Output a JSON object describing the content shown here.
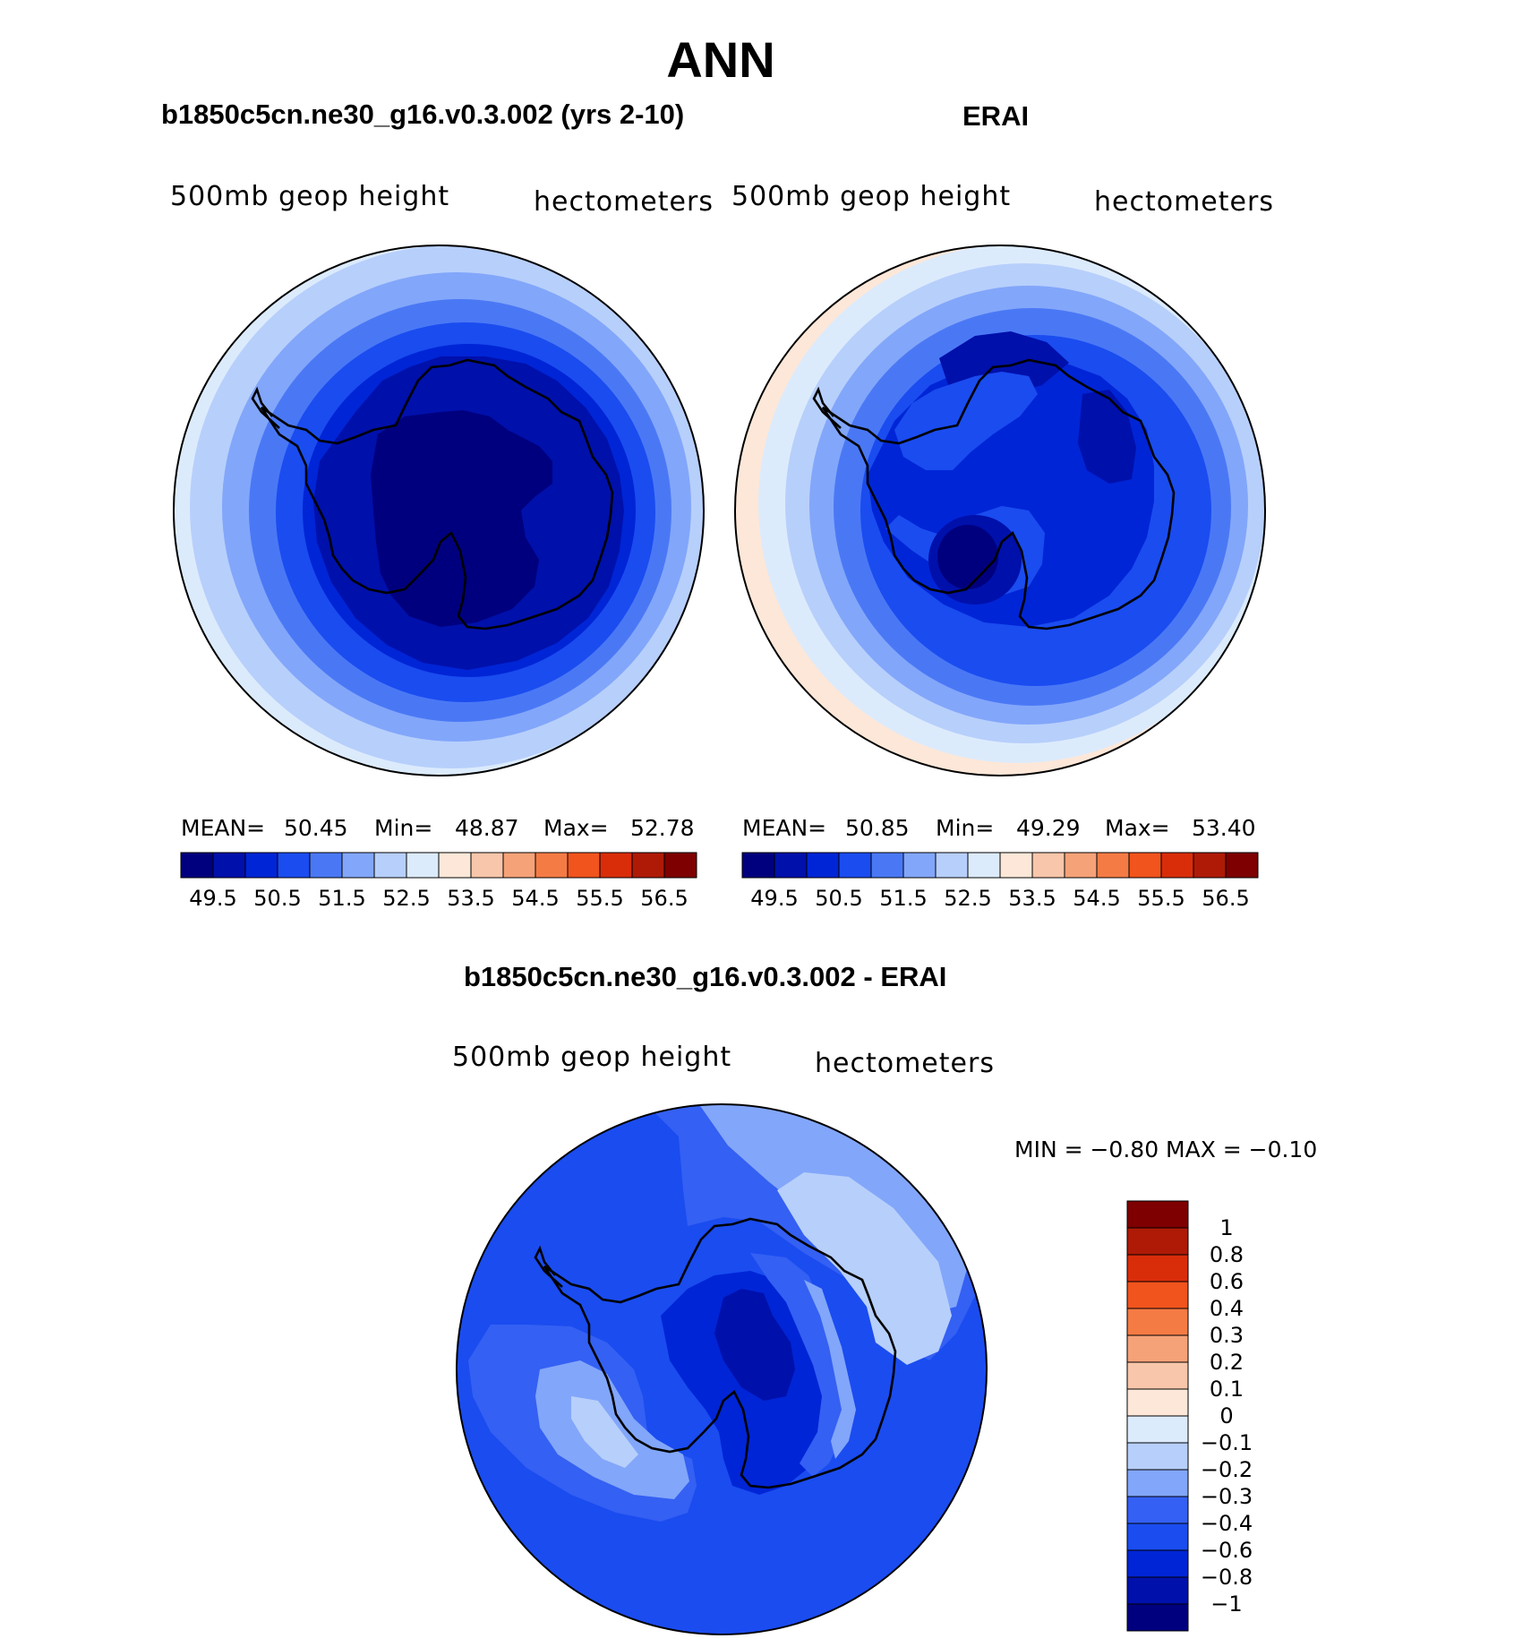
{
  "page": {
    "title": "ANN"
  },
  "panels": [
    {
      "title": "b1850c5cn.ne30_g16.v0.3.002 (yrs 2-10)",
      "left_label": "500mb  geop  height",
      "right_label": "hectometers",
      "stats": {
        "mean_label": "MEAN=",
        "mean": "50.45",
        "min_label": "Min=",
        "min": "48.87",
        "max_label": "Max=",
        "max": "52.78"
      }
    },
    {
      "title": "ERAI",
      "left_label": "500mb  geop  height",
      "right_label": "hectometers",
      "stats": {
        "mean_label": "MEAN=",
        "mean": "50.85",
        "min_label": "Min=",
        "min": "49.29",
        "max_label": "Max=",
        "max": "53.40"
      }
    },
    {
      "title": "b1850c5cn.ne30_g16.v0.3.002 - ERAI",
      "left_label": "500mb  geop  height",
      "right_label": "hectometers",
      "stats": {
        "text": "MIN =   −0.80  MAX =   −0.10"
      }
    }
  ],
  "colorbars": {
    "abs_colors": [
      "#00007f",
      "#0010ab",
      "#0025d6",
      "#1a4cf0",
      "#4a78f5",
      "#82a6fa",
      "#b7cffb",
      "#dcebfc",
      "#fde7d8",
      "#f8c6aa",
      "#f6a278",
      "#f57b45",
      "#f1541d",
      "#d92d0a",
      "#ae1a06",
      "#7e0000"
    ],
    "abs_ticks": [
      "49.5",
      "50.5",
      "51.5",
      "52.5",
      "53.5",
      "54.5",
      "55.5",
      "56.5"
    ],
    "diff_colors": [
      "#00007f",
      "#0010ab",
      "#0025d6",
      "#1a4cf0",
      "#3460f3",
      "#82a6fa",
      "#b7cffb",
      "#dcebfc",
      "#fde7d8",
      "#f8c6aa",
      "#f6a278",
      "#f57b45",
      "#f1541d",
      "#d92d0a",
      "#ae1a06",
      "#7e0000"
    ],
    "diff_ticks": [
      "−1",
      "−0.8",
      "−0.6",
      "−0.4",
      "−0.3",
      "−0.2",
      "−0.1",
      "0",
      "0.1",
      "0.2",
      "0.3",
      "0.4",
      "0.6",
      "0.8",
      "1"
    ]
  },
  "chart_data": [
    {
      "type": "heatmap",
      "title": "b1850c5cn.ne30_g16.v0.3.002 (yrs 2-10)",
      "variable": "500mb geop height",
      "units": "hectometers",
      "projection": "south polar stereographic",
      "mean": 50.45,
      "min": 48.87,
      "max": 52.78,
      "levels": [
        49.5,
        50.0,
        50.5,
        51.0,
        51.5,
        52.0,
        52.5,
        53.0,
        53.5,
        54.0,
        54.5,
        55.0,
        55.5,
        56.0,
        56.5
      ],
      "ring_levels_outer_to_inner": [
        53.0,
        52.5,
        52.0,
        51.5,
        51.0,
        50.5,
        50.0,
        49.5
      ]
    },
    {
      "type": "heatmap",
      "title": "ERAI",
      "variable": "500mb geop height",
      "units": "hectometers",
      "projection": "south polar stereographic",
      "mean": 50.85,
      "min": 49.29,
      "max": 53.4,
      "levels": [
        49.5,
        50.0,
        50.5,
        51.0,
        51.5,
        52.0,
        52.5,
        53.0,
        53.5,
        54.0,
        54.5,
        55.0,
        55.5,
        56.0,
        56.5
      ],
      "ring_levels_outer_to_inner": [
        53.5,
        53.0,
        52.5,
        52.0,
        51.5,
        51.0,
        50.5,
        50.0
      ]
    },
    {
      "type": "heatmap",
      "title": "b1850c5cn.ne30_g16.v0.3.002 - ERAI",
      "variable": "500mb geop height",
      "units": "hectometers",
      "projection": "south polar stereographic",
      "min": -0.8,
      "max": -0.1,
      "levels": [
        -1,
        -0.8,
        -0.6,
        -0.4,
        -0.3,
        -0.2,
        -0.1,
        0,
        0.1,
        0.2,
        0.3,
        0.4,
        0.6,
        0.8,
        1
      ]
    }
  ]
}
